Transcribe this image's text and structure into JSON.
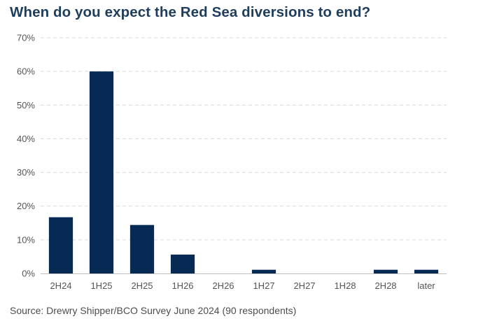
{
  "chart_data": {
    "type": "bar",
    "title": "When do you expect the Red Sea diversions to end?",
    "xlabel": "",
    "ylabel": "",
    "categories": [
      "2H24",
      "1H25",
      "2H25",
      "1H26",
      "2H26",
      "1H27",
      "2H27",
      "1H28",
      "2H28",
      "later"
    ],
    "values": [
      16.7,
      60.0,
      14.4,
      5.6,
      0,
      1.1,
      0,
      0,
      1.1,
      1.1
    ],
    "ylim": [
      0,
      70
    ],
    "yticks": [
      0,
      10,
      20,
      30,
      40,
      50,
      60,
      70
    ],
    "ytick_labels": [
      "0%",
      "10%",
      "20%",
      "30%",
      "40%",
      "50%",
      "60%",
      "70%"
    ],
    "grid": true,
    "legend": "none",
    "bar_color": "#062a54",
    "source": "Source: Drewry Shipper/BCO Survey June 2024 (90 respondents)"
  }
}
